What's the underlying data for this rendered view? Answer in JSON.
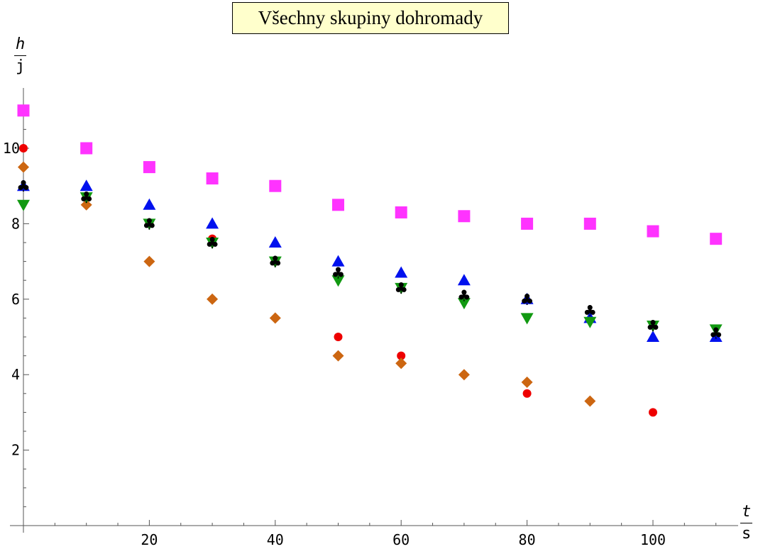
{
  "chart_data": {
    "type": "scatter",
    "title": "Všechny skupiny dohromady",
    "ylabel": {
      "numerator": "h",
      "denominator": "j"
    },
    "xlabel": {
      "numerator": "t",
      "denominator": "s"
    },
    "xlim": [
      0,
      115
    ],
    "ylim": [
      0,
      11.8
    ],
    "x_ticks": [
      20,
      40,
      60,
      80,
      100
    ],
    "y_ticks": [
      2,
      4,
      6,
      8,
      10
    ],
    "grid": false,
    "legend": "none",
    "series": [
      {
        "marker": "square",
        "color": "#ff33ff",
        "points": [
          [
            0,
            11
          ],
          [
            10,
            10
          ],
          [
            20,
            9.5
          ],
          [
            30,
            9.2
          ],
          [
            40,
            9
          ],
          [
            50,
            8.5
          ],
          [
            60,
            8.3
          ],
          [
            70,
            8.2
          ],
          [
            80,
            8
          ],
          [
            90,
            8
          ],
          [
            100,
            7.8
          ],
          [
            110,
            7.6
          ]
        ]
      },
      {
        "marker": "circle",
        "color": "#ee0000",
        "points": [
          [
            0,
            10
          ],
          [
            10,
            8.7
          ],
          [
            20,
            8
          ],
          [
            30,
            7.6
          ],
          [
            40,
            7
          ],
          [
            50,
            5
          ],
          [
            60,
            4.5
          ],
          [
            80,
            3.5
          ],
          [
            100,
            3
          ]
        ]
      },
      {
        "marker": "diamond",
        "color": "#cc6611",
        "points": [
          [
            0,
            9.5
          ],
          [
            10,
            8.5
          ],
          [
            20,
            7
          ],
          [
            30,
            6
          ],
          [
            40,
            5.5
          ],
          [
            50,
            4.5
          ],
          [
            60,
            4.3
          ],
          [
            70,
            4
          ],
          [
            80,
            3.8
          ],
          [
            90,
            3.3
          ]
        ]
      },
      {
        "marker": "triangle-up",
        "color": "#0011ee",
        "points": [
          [
            0,
            9
          ],
          [
            10,
            9
          ],
          [
            20,
            8.5
          ],
          [
            30,
            8
          ],
          [
            40,
            7.5
          ],
          [
            50,
            7
          ],
          [
            60,
            6.7
          ],
          [
            70,
            6.5
          ],
          [
            80,
            6
          ],
          [
            90,
            5.5
          ],
          [
            100,
            5
          ],
          [
            110,
            5
          ]
        ]
      },
      {
        "marker": "triangle-down",
        "color": "#119911",
        "points": [
          [
            0,
            8.5
          ],
          [
            10,
            8.7
          ],
          [
            20,
            8
          ],
          [
            30,
            7.5
          ],
          [
            40,
            7
          ],
          [
            50,
            6.5
          ],
          [
            60,
            6.3
          ],
          [
            70,
            5.9
          ],
          [
            80,
            5.5
          ],
          [
            90,
            5.4
          ],
          [
            100,
            5.3
          ],
          [
            110,
            5.2
          ]
        ]
      },
      {
        "marker": "club",
        "color": "#000000",
        "points": [
          [
            0,
            9
          ],
          [
            10,
            8.7
          ],
          [
            20,
            8
          ],
          [
            30,
            7.5
          ],
          [
            40,
            7
          ],
          [
            50,
            6.7
          ],
          [
            60,
            6.3
          ],
          [
            70,
            6.1
          ],
          [
            80,
            6
          ],
          [
            90,
            5.7
          ],
          [
            100,
            5.3
          ],
          [
            110,
            5.1
          ]
        ]
      }
    ]
  }
}
